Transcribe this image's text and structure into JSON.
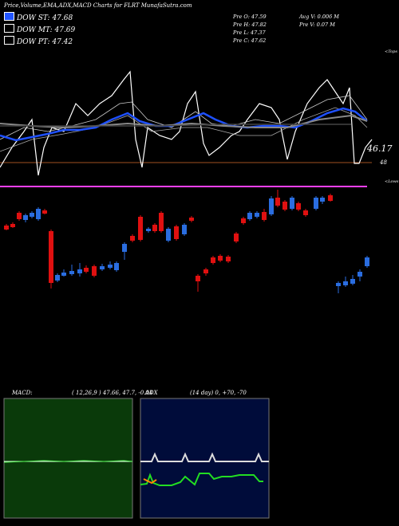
{
  "header": {
    "title": "Price,Volume,EMA,ADX,MACD Charts for FLRT MunafaSutra.com"
  },
  "legend": [
    {
      "label": "DOW ST: 47.68",
      "color": "#2255ff"
    },
    {
      "label": "DOW MT: 47.69",
      "color": "#ffffff"
    },
    {
      "label": "DOW PT: 47.42",
      "color": "#ff55ff"
    }
  ],
  "info": {
    "prev_open": "Pre   O: 47.59",
    "prev_high": "Pre   H: 47.82",
    "prev_low": "Pre   L: 47.37",
    "prev_close": "Pre   C: 47.62",
    "avg_volume": "Avg V: 0.006  M",
    "prev_volume": "Pre   V: 0.07 M"
  },
  "labels": {
    "tops": "<Tops",
    "lows": "<Lows",
    "last_value": "46.17",
    "level": "48"
  },
  "macd": {
    "label": "MACD:",
    "params": "( 12,26,9 ) 47.66,  47.7,  -0.04"
  },
  "adx": {
    "label": "ADX",
    "params": "(14  day) 0,  +70,  -70"
  },
  "colors": {
    "bull": "#2a6de0",
    "bear": "#e01010",
    "ema_fast": "#1e50ff",
    "pt_line": "#ff40ff",
    "level": "#a05020",
    "macd_bg": "#0a3a0a",
    "adx_bg": "#000c3a"
  },
  "chart_data": [
    {
      "type": "line",
      "title": "Price,Volume,EMA,ADX,MACD Charts for FLRT",
      "series": [
        {
          "name": "DOW ST",
          "value": 47.68
        },
        {
          "name": "DOW MT",
          "value": 47.69
        },
        {
          "name": "DOW PT",
          "value": 47.42
        }
      ],
      "annotations": [
        "46.17",
        "48"
      ]
    },
    {
      "type": "bar",
      "title": "MACD",
      "params": [
        12,
        26,
        9
      ],
      "values": [
        47.66,
        47.7,
        -0.04
      ]
    },
    {
      "type": "line",
      "title": "ADX",
      "period_days": 14,
      "values": [
        0,
        70,
        -70
      ]
    }
  ]
}
